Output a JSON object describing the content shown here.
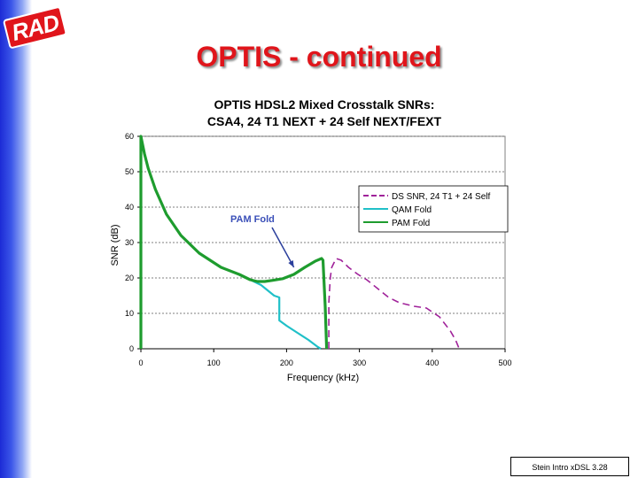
{
  "logo": {
    "text": "RAD"
  },
  "slide": {
    "title": "OPTIS - continued"
  },
  "footer": {
    "text": "Stein Intro xDSL 3.28"
  },
  "chart_data": {
    "type": "line",
    "title_lines": [
      "OPTIS HDSL2 Mixed Crosstalk SNRs:",
      "CSA4, 24 T1 NEXT + 24 Self NEXT/FEXT"
    ],
    "xlabel": "Frequency (kHz)",
    "ylabel": "SNR (dB)",
    "xlim": [
      0,
      500
    ],
    "ylim": [
      0,
      60
    ],
    "xticks": [
      0,
      100,
      200,
      300,
      400,
      500
    ],
    "yticks": [
      0,
      10,
      20,
      30,
      40,
      50,
      60
    ],
    "xtick_labels": [
      "0",
      "100",
      "200",
      "300",
      "400",
      "500"
    ],
    "ytick_labels": [
      "0",
      "10",
      "20",
      "30",
      "40",
      "50",
      "60"
    ],
    "grid": "horizontal dashed",
    "legend_position": "right",
    "annotation": {
      "text": "PAM Fold",
      "arrow_to": [
        210,
        23
      ]
    },
    "series": [
      {
        "name": "DS SNR, 24 T1 + 24 Self",
        "color": "#a0229a",
        "style": "dashed",
        "points": [
          [
            258,
            0
          ],
          [
            258,
            13
          ],
          [
            260,
            20
          ],
          [
            262,
            23
          ],
          [
            268,
            25.5
          ],
          [
            275,
            25
          ],
          [
            285,
            23
          ],
          [
            298,
            21
          ],
          [
            310,
            19.5
          ],
          [
            325,
            17
          ],
          [
            340,
            14.5
          ],
          [
            355,
            13
          ],
          [
            375,
            12
          ],
          [
            392,
            11.5
          ],
          [
            410,
            9
          ],
          [
            425,
            5
          ],
          [
            432,
            2.5
          ],
          [
            437,
            0
          ]
        ]
      },
      {
        "name": "QAM Fold",
        "color": "#20c0c8",
        "style": "solid",
        "points": [
          [
            0,
            0
          ],
          [
            0,
            60
          ],
          [
            5,
            55
          ],
          [
            10,
            51
          ],
          [
            20,
            45
          ],
          [
            35,
            38
          ],
          [
            55,
            32
          ],
          [
            80,
            27
          ],
          [
            110,
            23
          ],
          [
            135,
            21
          ],
          [
            150,
            19.5
          ],
          [
            165,
            18
          ],
          [
            183,
            15
          ],
          [
            190,
            14.5
          ],
          [
            190,
            8
          ],
          [
            200,
            6.5
          ],
          [
            215,
            4.5
          ],
          [
            230,
            2.5
          ],
          [
            243,
            0.5
          ],
          [
            247,
            0
          ]
        ]
      },
      {
        "name": "PAM Fold",
        "color": "#1e9c2e",
        "style": "solid",
        "points": [
          [
            0,
            0
          ],
          [
            0,
            60
          ],
          [
            5,
            55
          ],
          [
            10,
            51
          ],
          [
            20,
            45
          ],
          [
            35,
            38
          ],
          [
            55,
            32
          ],
          [
            80,
            27
          ],
          [
            110,
            23
          ],
          [
            135,
            21
          ],
          [
            150,
            19.5
          ],
          [
            160,
            19
          ],
          [
            170,
            19
          ],
          [
            180,
            19.3
          ],
          [
            195,
            19.8
          ],
          [
            210,
            21
          ],
          [
            225,
            23
          ],
          [
            240,
            24.8
          ],
          [
            248,
            25.5
          ],
          [
            250,
            25
          ],
          [
            253,
            12
          ],
          [
            255,
            0
          ]
        ]
      }
    ]
  }
}
